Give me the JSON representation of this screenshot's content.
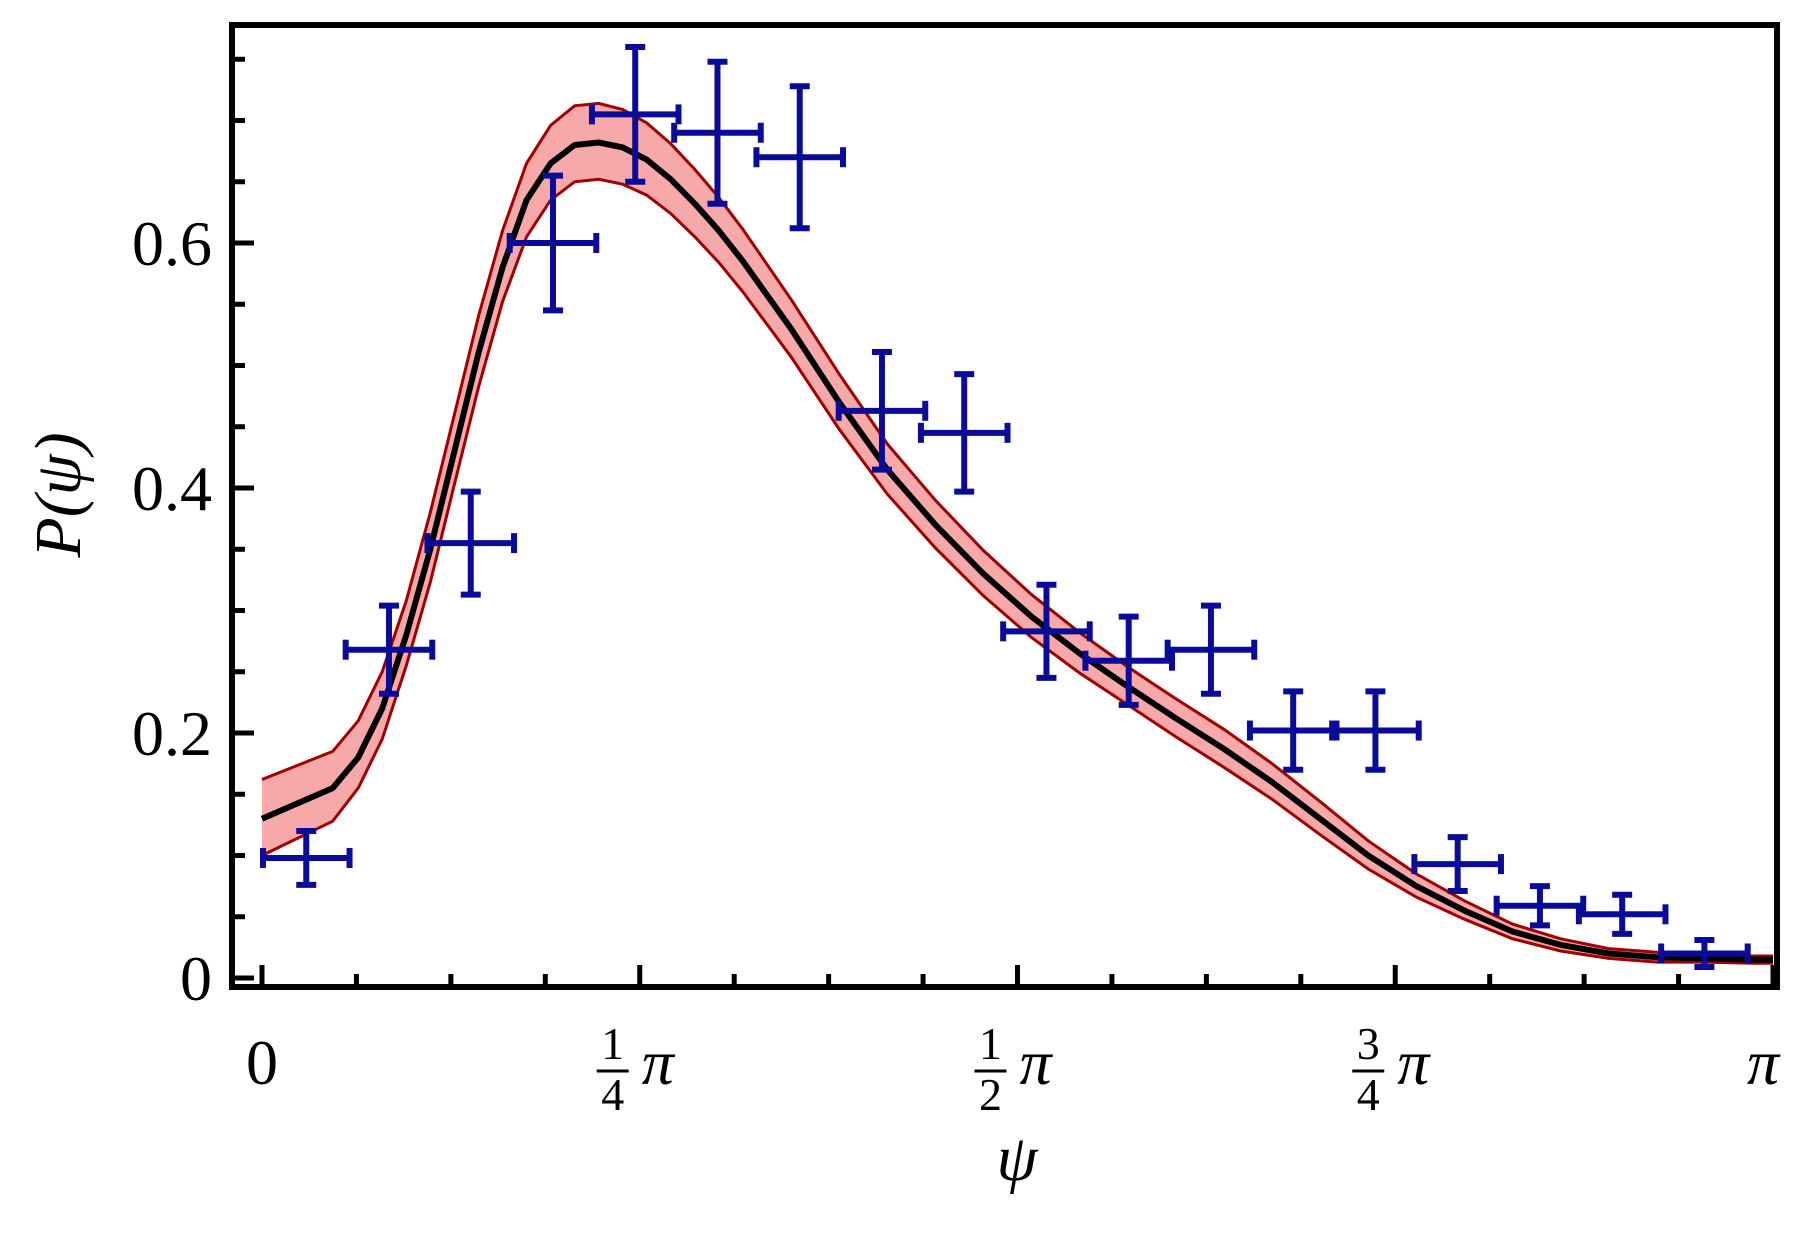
{
  "chart_data": {
    "type": "scatter",
    "title": "",
    "xlabel": "ψ",
    "ylabel": "P(ψ)",
    "xlim": [
      0,
      3.14159
    ],
    "ylim": [
      -0.005,
      0.77
    ],
    "grid": false,
    "y_ticks": [
      {
        "value": 0,
        "label": "0"
      },
      {
        "value": 0.2,
        "label": "0.2"
      },
      {
        "value": 0.4,
        "label": "0.4"
      },
      {
        "value": 0.6,
        "label": "0.6"
      }
    ],
    "x_ticks": [
      {
        "value": 0,
        "label": "0"
      },
      {
        "value": 0.7854,
        "num": "1",
        "den": "4",
        "sym": "π"
      },
      {
        "value": 1.5708,
        "num": "1",
        "den": "2",
        "sym": "π"
      },
      {
        "value": 2.3562,
        "num": "3",
        "den": "4",
        "sym": "π"
      },
      {
        "value": 3.14159,
        "label": "π"
      }
    ],
    "model": {
      "x": [
        0.0,
        0.147,
        0.2,
        0.25,
        0.3,
        0.35,
        0.4,
        0.45,
        0.5,
        0.55,
        0.6,
        0.65,
        0.7,
        0.75,
        0.8,
        0.85,
        0.9,
        0.95,
        1.0,
        1.1,
        1.2,
        1.3,
        1.4,
        1.5,
        1.6,
        1.7,
        1.8,
        1.9,
        2.0,
        2.1,
        2.2,
        2.3,
        2.4,
        2.5,
        2.6,
        2.7,
        2.8,
        2.9,
        3.0,
        3.1,
        3.1416
      ],
      "y": [
        0.13,
        0.155,
        0.18,
        0.22,
        0.28,
        0.35,
        0.43,
        0.51,
        0.58,
        0.635,
        0.665,
        0.68,
        0.682,
        0.678,
        0.668,
        0.652,
        0.632,
        0.61,
        0.585,
        0.53,
        0.47,
        0.415,
        0.37,
        0.33,
        0.295,
        0.265,
        0.238,
        0.212,
        0.187,
        0.16,
        0.13,
        0.1,
        0.075,
        0.055,
        0.038,
        0.027,
        0.02,
        0.017,
        0.016,
        0.015,
        0.015
      ],
      "lower": [
        0.1,
        0.128,
        0.155,
        0.195,
        0.255,
        0.323,
        0.403,
        0.482,
        0.552,
        0.605,
        0.635,
        0.65,
        0.652,
        0.648,
        0.639,
        0.624,
        0.605,
        0.584,
        0.56,
        0.507,
        0.448,
        0.395,
        0.351,
        0.312,
        0.278,
        0.249,
        0.223,
        0.197,
        0.172,
        0.146,
        0.117,
        0.089,
        0.066,
        0.048,
        0.032,
        0.022,
        0.016,
        0.013,
        0.013,
        0.012,
        0.012
      ],
      "upper": [
        0.162,
        0.185,
        0.21,
        0.25,
        0.308,
        0.38,
        0.46,
        0.54,
        0.61,
        0.665,
        0.696,
        0.712,
        0.714,
        0.709,
        0.698,
        0.681,
        0.66,
        0.637,
        0.611,
        0.554,
        0.493,
        0.436,
        0.39,
        0.349,
        0.313,
        0.282,
        0.254,
        0.228,
        0.203,
        0.175,
        0.144,
        0.112,
        0.085,
        0.063,
        0.044,
        0.032,
        0.024,
        0.021,
        0.019,
        0.018,
        0.018
      ]
    },
    "points": [
      {
        "x": 0.092,
        "y": 0.098,
        "xerr": 0.09,
        "yerr": 0.022
      },
      {
        "x": 0.264,
        "y": 0.268,
        "xerr": 0.09,
        "yerr": 0.036
      },
      {
        "x": 0.434,
        "y": 0.355,
        "xerr": 0.09,
        "yerr": 0.042
      },
      {
        "x": 0.605,
        "y": 0.6,
        "xerr": 0.09,
        "yerr": 0.055
      },
      {
        "x": 0.776,
        "y": 0.705,
        "xerr": 0.09,
        "yerr": 0.055
      },
      {
        "x": 0.947,
        "y": 0.69,
        "xerr": 0.09,
        "yerr": 0.058
      },
      {
        "x": 1.118,
        "y": 0.67,
        "xerr": 0.09,
        "yerr": 0.058
      },
      {
        "x": 1.289,
        "y": 0.463,
        "xerr": 0.09,
        "yerr": 0.048
      },
      {
        "x": 1.46,
        "y": 0.445,
        "xerr": 0.09,
        "yerr": 0.048
      },
      {
        "x": 1.631,
        "y": 0.283,
        "xerr": 0.09,
        "yerr": 0.038
      },
      {
        "x": 1.802,
        "y": 0.259,
        "xerr": 0.09,
        "yerr": 0.036
      },
      {
        "x": 1.973,
        "y": 0.268,
        "xerr": 0.09,
        "yerr": 0.036
      },
      {
        "x": 2.144,
        "y": 0.202,
        "xerr": 0.09,
        "yerr": 0.032
      },
      {
        "x": 2.315,
        "y": 0.202,
        "xerr": 0.09,
        "yerr": 0.032
      },
      {
        "x": 2.486,
        "y": 0.093,
        "xerr": 0.09,
        "yerr": 0.022
      },
      {
        "x": 2.657,
        "y": 0.059,
        "xerr": 0.09,
        "yerr": 0.016
      },
      {
        "x": 2.828,
        "y": 0.052,
        "xerr": 0.09,
        "yerr": 0.016
      },
      {
        "x": 2.999,
        "y": 0.02,
        "xerr": 0.09,
        "yerr": 0.011
      }
    ],
    "colors": {
      "points": "#0b0b99",
      "band_fill": "#f7a9a9",
      "band_edge": "#a00000",
      "model_line": "#000000",
      "frame": "#000000"
    }
  }
}
